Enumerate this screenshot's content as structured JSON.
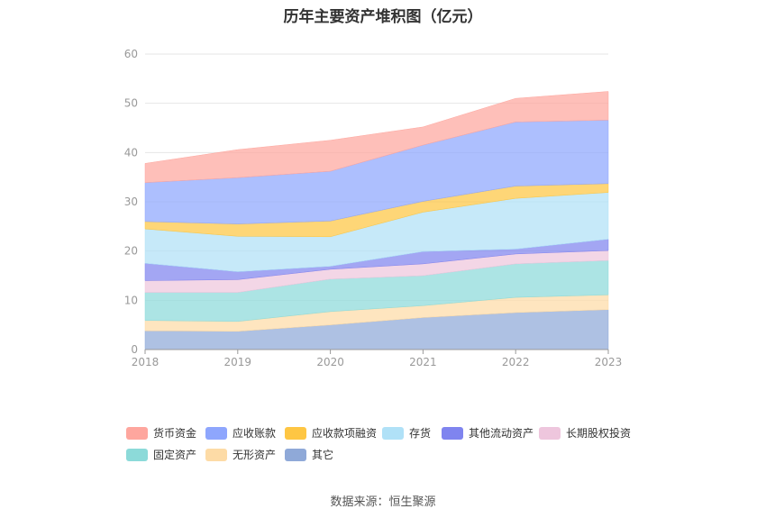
{
  "title": "历年主要资产堆积图（亿元）",
  "source": "数据来源：恒生聚源",
  "chart_data": {
    "type": "area",
    "stacked": true,
    "title": "历年主要资产堆积图（亿元）",
    "categories": [
      "2018",
      "2019",
      "2020",
      "2021",
      "2022",
      "2023"
    ],
    "ylim": [
      0,
      60
    ],
    "yticks": [
      0,
      10,
      20,
      30,
      40,
      50,
      60
    ],
    "grid": true,
    "legend_position": "bottom",
    "series": [
      {
        "name": "其它",
        "color": "#8fa9d8",
        "values": [
          3.8,
          3.7,
          5.0,
          6.5,
          7.5,
          8.1
        ]
      },
      {
        "name": "无形资产",
        "color": "#fddba6",
        "values": [
          2.1,
          2.0,
          2.7,
          2.4,
          3.1,
          3.0
        ]
      },
      {
        "name": "固定资产",
        "color": "#8cdad9",
        "values": [
          5.7,
          5.9,
          6.6,
          6.1,
          6.8,
          7.0
        ]
      },
      {
        "name": "长期股权投资",
        "color": "#eec6dd",
        "values": [
          2.4,
          2.6,
          2.0,
          2.4,
          2.0,
          2.0
        ]
      },
      {
        "name": "其他流动资产",
        "color": "#7f84ef",
        "values": [
          3.5,
          1.6,
          0.6,
          2.5,
          1.0,
          2.3
        ]
      },
      {
        "name": "存货",
        "color": "#b0e1f7",
        "values": [
          7.0,
          7.2,
          6.0,
          8.0,
          10.3,
          9.5
        ]
      },
      {
        "name": "应收款项融资",
        "color": "#fec643",
        "values": [
          1.5,
          2.5,
          3.2,
          2.2,
          2.5,
          1.8
        ]
      },
      {
        "name": "应收账款",
        "color": "#8ea6fd",
        "values": [
          7.9,
          9.4,
          10.1,
          11.4,
          13.0,
          12.9
        ]
      },
      {
        "name": "货币资金",
        "color": "#fea69e",
        "values": [
          3.9,
          5.7,
          6.3,
          3.7,
          4.8,
          5.8
        ]
      }
    ]
  },
  "legend": [
    {
      "name": "货币资金",
      "color": "#fea69e"
    },
    {
      "name": "应收账款",
      "color": "#8ea6fd"
    },
    {
      "name": "应收款项融资",
      "color": "#fec643"
    },
    {
      "name": "存货",
      "color": "#b0e1f7"
    },
    {
      "name": "其他流动资产",
      "color": "#7f84ef"
    },
    {
      "name": "长期股权投资",
      "color": "#eec6dd"
    },
    {
      "name": "固定资产",
      "color": "#8cdad9"
    },
    {
      "name": "无形资产",
      "color": "#fddba6"
    },
    {
      "name": "其它",
      "color": "#8fa9d8"
    }
  ]
}
